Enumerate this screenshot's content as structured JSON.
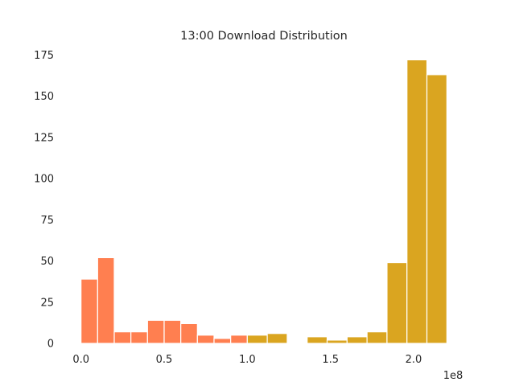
{
  "chart_data": {
    "type": "bar",
    "title": "13:00 Download Distribution",
    "xlabel": "",
    "ylabel": "",
    "x_offset_label": "1e8",
    "xlim": [
      -0.1,
      2.3
    ],
    "ylim": [
      0,
      180
    ],
    "x_ticks": [
      {
        "value": 0.0,
        "label": "0.0"
      },
      {
        "value": 0.5,
        "label": "0.5"
      },
      {
        "value": 1.0,
        "label": "1.0"
      },
      {
        "value": 1.5,
        "label": "1.5"
      },
      {
        "value": 2.0,
        "label": "2.0"
      }
    ],
    "y_ticks": [
      {
        "value": 0,
        "label": "0"
      },
      {
        "value": 25,
        "label": "25"
      },
      {
        "value": 50,
        "label": "50"
      },
      {
        "value": 75,
        "label": "75"
      },
      {
        "value": 100,
        "label": "100"
      },
      {
        "value": 125,
        "label": "125"
      },
      {
        "value": 150,
        "label": "150"
      },
      {
        "value": 175,
        "label": "175"
      }
    ],
    "grid": false,
    "series": [
      {
        "color": "#FF7F50",
        "bins": [
          {
            "x0": 0.0,
            "x1": 0.1,
            "count": 39
          },
          {
            "x0": 0.1,
            "x1": 0.2,
            "count": 52
          },
          {
            "x0": 0.2,
            "x1": 0.3,
            "count": 7
          },
          {
            "x0": 0.3,
            "x1": 0.4,
            "count": 7
          },
          {
            "x0": 0.4,
            "x1": 0.5,
            "count": 14
          },
          {
            "x0": 0.5,
            "x1": 0.6,
            "count": 14
          },
          {
            "x0": 0.6,
            "x1": 0.7,
            "count": 12
          },
          {
            "x0": 0.7,
            "x1": 0.8,
            "count": 5
          },
          {
            "x0": 0.8,
            "x1": 0.9,
            "count": 3
          },
          {
            "x0": 0.9,
            "x1": 1.0,
            "count": 5
          }
        ]
      },
      {
        "color": "#DAA520",
        "bins": [
          {
            "x0": 1.0,
            "x1": 1.12,
            "count": 5
          },
          {
            "x0": 1.12,
            "x1": 1.24,
            "count": 6
          },
          {
            "x0": 1.24,
            "x1": 1.36,
            "count": 0
          },
          {
            "x0": 1.36,
            "x1": 1.48,
            "count": 4
          },
          {
            "x0": 1.48,
            "x1": 1.6,
            "count": 2
          },
          {
            "x0": 1.6,
            "x1": 1.72,
            "count": 4
          },
          {
            "x0": 1.72,
            "x1": 1.84,
            "count": 7
          },
          {
            "x0": 1.84,
            "x1": 1.96,
            "count": 49
          },
          {
            "x0": 1.96,
            "x1": 2.08,
            "count": 172
          },
          {
            "x0": 2.08,
            "x1": 2.2,
            "count": 163
          }
        ]
      }
    ]
  }
}
